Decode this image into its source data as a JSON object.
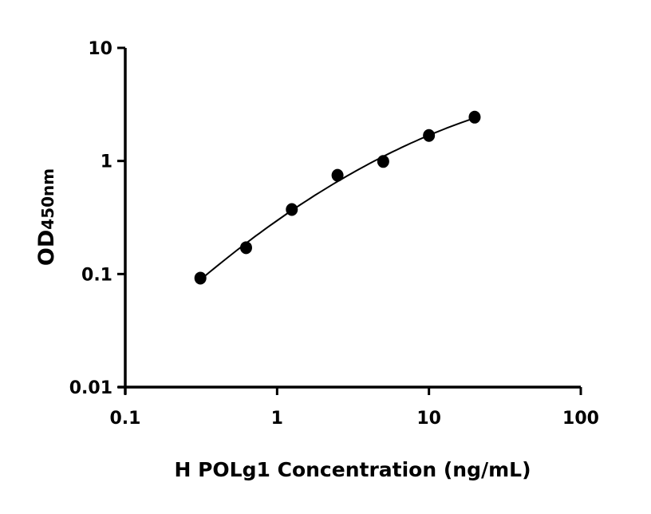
{
  "chart_data": {
    "type": "scatter",
    "title": "",
    "xlabel": "H POLg1 Concentration (ng/mL)",
    "ylabel_main": "OD",
    "ylabel_sub": "450nm",
    "x_scale": "log",
    "y_scale": "log",
    "xlim": [
      0.1,
      100
    ],
    "ylim": [
      0.01,
      10
    ],
    "x_ticks": [
      {
        "value": 0.1,
        "label": "0.1"
      },
      {
        "value": 1,
        "label": "1"
      },
      {
        "value": 10,
        "label": "10"
      },
      {
        "value": 100,
        "label": "100"
      }
    ],
    "y_ticks": [
      {
        "value": 0.01,
        "label": "0.01"
      },
      {
        "value": 0.1,
        "label": "0.1"
      },
      {
        "value": 1,
        "label": "1"
      },
      {
        "value": 10,
        "label": "10"
      }
    ],
    "grid": false,
    "legend": "none",
    "fit_curve": true,
    "color": "#000000",
    "series": [
      {
        "x": [
          0.3125,
          0.625,
          1.25,
          2.5,
          5,
          10,
          20
        ],
        "y": [
          0.092,
          0.171,
          0.372,
          0.747,
          0.99,
          1.68,
          2.44
        ]
      }
    ]
  }
}
